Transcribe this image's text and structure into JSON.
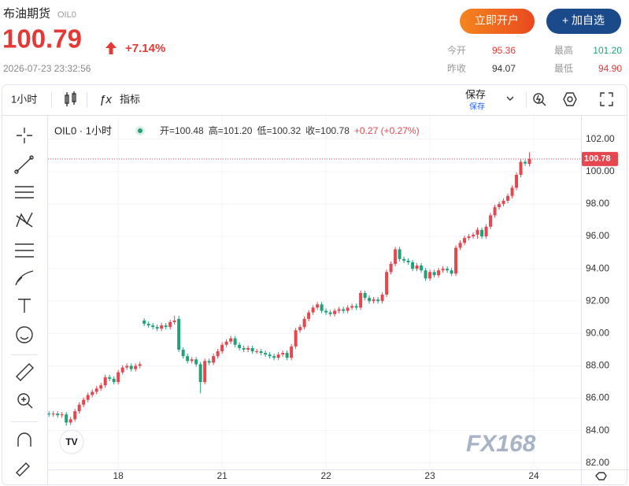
{
  "header": {
    "title": "布油期货",
    "code": "OIL0",
    "price": "100.79",
    "change": "+7.14%",
    "time": "2026-07-23 23:32:56",
    "buttons": [
      "立即开户",
      "+ 加自选"
    ],
    "stats": [
      {
        "label": "今开",
        "value": "95.36"
      },
      {
        "label": "最高",
        "value": "101.20"
      },
      {
        "label": "昨收",
        "value": "94.07"
      },
      {
        "label": "最低",
        "value": "94.90"
      }
    ]
  },
  "toolbar": {
    "interval": "1小时",
    "indicators": "指标",
    "save": "保存",
    "save_sub": "保存"
  },
  "chart_data": {
    "type": "candlestick",
    "title": "OIL0 · 1小时",
    "legend": [
      "开=100.48",
      "高=101.20",
      "低=100.32",
      "收=100.78",
      "+0.27 (+0.27%)"
    ],
    "up_color": "#e5474f",
    "down_color": "#22a07a",
    "grid": true,
    "xlim": [
      -0.4,
      122.9
    ],
    "xticks": [
      {
        "value": 16,
        "label": "18"
      },
      {
        "value": 40,
        "label": "21"
      },
      {
        "value": 64,
        "label": "22"
      },
      {
        "value": 88,
        "label": "23"
      },
      {
        "value": 112,
        "label": "24"
      }
    ],
    "ylim": [
      81.6,
      103.4
    ],
    "yticks": [
      {
        "value": 82,
        "label": "82.00"
      },
      {
        "value": 84,
        "label": "84.00"
      },
      {
        "value": 86,
        "label": "86.00"
      },
      {
        "value": 88,
        "label": "88.00"
      },
      {
        "value": 90,
        "label": "90.00"
      },
      {
        "value": 92,
        "label": "92.00"
      },
      {
        "value": 94,
        "label": "94.00"
      },
      {
        "value": 96,
        "label": "96.00"
      },
      {
        "value": 98,
        "label": "98.00"
      },
      {
        "value": 100,
        "label": "100.00"
      },
      {
        "value": 102,
        "label": "102.00"
      }
    ],
    "last_price": {
      "value": 100.78,
      "label": "100.78"
    },
    "open": [
      85.05,
      85.0,
      85.05,
      84.95,
      85.0,
      84.5,
      84.7,
      85.2,
      85.6,
      85.9,
      86.2,
      86.4,
      86.6,
      86.8,
      87.3,
      87.2,
      87.0,
      87.6,
      87.9,
      88.0,
      87.8,
      88.0,
      90.8,
      90.6,
      90.5,
      90.4,
      90.3,
      90.5,
      90.4,
      90.7,
      90.9,
      89.0,
      88.6,
      88.3,
      88.4,
      88.1,
      87.0,
      88.3,
      88.2,
      88.6,
      88.9,
      89.3,
      89.5,
      89.7,
      89.3,
      89.1,
      89.0,
      89.1,
      88.9,
      88.9,
      88.8,
      88.7,
      88.6,
      88.5,
      88.7,
      88.8,
      88.5,
      89.2,
      90.2,
      90.4,
      90.9,
      91.3,
      91.6,
      91.8,
      91.4,
      91.3,
      91.2,
      91.4,
      91.5,
      91.4,
      91.6,
      91.7,
      91.6,
      92.5,
      92.2,
      92.0,
      92.1,
      92.0,
      92.4,
      93.8,
      94.3,
      95.2,
      94.6,
      94.5,
      94.4,
      94.0,
      94.2,
      93.9,
      93.4,
      93.8,
      93.6,
      93.9,
      94.0,
      93.9,
      93.7,
      95.3,
      95.6,
      95.9,
      96.0,
      96.1,
      96.4,
      96.0,
      96.6,
      97.3,
      97.8,
      98.0,
      98.2,
      98.5,
      99.0,
      99.8,
      100.6,
      100.48
    ],
    "high": [
      85.2,
      85.2,
      85.2,
      85.15,
      85.15,
      84.85,
      85.35,
      85.75,
      86.05,
      86.35,
      86.55,
      86.75,
      86.95,
      87.45,
      87.45,
      87.35,
      87.75,
      88.05,
      88.15,
      88.15,
      88.15,
      88.25,
      90.95,
      90.75,
      90.65,
      90.55,
      90.65,
      90.65,
      90.85,
      91.1,
      91.1,
      89.15,
      88.75,
      88.55,
      88.55,
      88.25,
      88.45,
      88.45,
      88.75,
      89.05,
      89.45,
      89.65,
      89.85,
      89.85,
      89.45,
      89.25,
      89.25,
      89.25,
      89.05,
      89.05,
      88.95,
      88.85,
      88.75,
      88.85,
      88.95,
      88.95,
      89.35,
      90.35,
      90.55,
      91.05,
      91.45,
      91.75,
      91.95,
      91.95,
      91.55,
      91.45,
      91.55,
      91.65,
      91.65,
      91.75,
      91.85,
      91.85,
      92.65,
      92.65,
      92.35,
      92.25,
      92.25,
      92.55,
      93.95,
      94.45,
      95.35,
      95.35,
      94.75,
      94.65,
      94.55,
      94.35,
      94.35,
      94.05,
      93.95,
      93.95,
      94.05,
      94.15,
      94.15,
      94.05,
      95.45,
      95.75,
      96.05,
      96.15,
      96.25,
      96.55,
      96.55,
      96.75,
      97.45,
      97.95,
      98.15,
      98.35,
      98.65,
      99.15,
      99.95,
      100.75,
      100.75,
      101.2
    ],
    "low": [
      84.85,
      84.85,
      84.8,
      84.8,
      84.3,
      84.35,
      84.55,
      85.05,
      85.45,
      85.75,
      86.05,
      86.25,
      86.45,
      86.65,
      87.05,
      86.85,
      86.85,
      87.45,
      87.75,
      87.65,
      87.65,
      87.85,
      90.45,
      90.35,
      90.25,
      90.15,
      90.15,
      90.25,
      90.25,
      90.55,
      88.85,
      88.45,
      88.15,
      88.15,
      87.95,
      86.3,
      86.85,
      88.05,
      88.05,
      88.45,
      88.75,
      89.15,
      89.35,
      89.15,
      88.95,
      88.85,
      88.85,
      88.75,
      88.75,
      88.65,
      88.55,
      88.45,
      88.35,
      88.35,
      88.55,
      88.35,
      88.35,
      89.05,
      90.05,
      90.25,
      90.75,
      91.15,
      91.45,
      91.25,
      91.15,
      91.05,
      91.05,
      91.25,
      91.25,
      91.25,
      91.45,
      91.45,
      91.45,
      92.05,
      91.85,
      91.85,
      91.85,
      91.85,
      92.25,
      93.65,
      94.15,
      94.45,
      94.35,
      94.25,
      93.85,
      93.85,
      93.75,
      93.25,
      93.25,
      93.45,
      93.45,
      93.75,
      93.75,
      93.55,
      93.55,
      95.15,
      95.45,
      95.75,
      95.85,
      95.85,
      95.85,
      95.85,
      96.45,
      97.15,
      97.65,
      97.85,
      98.05,
      98.35,
      98.85,
      99.65,
      100.35,
      100.32
    ],
    "close": [
      85.0,
      85.05,
      84.95,
      85.0,
      84.5,
      84.7,
      85.2,
      85.6,
      85.9,
      86.2,
      86.4,
      86.6,
      86.8,
      87.3,
      87.2,
      87.0,
      87.6,
      87.9,
      88.0,
      87.8,
      88.0,
      88.1,
      90.6,
      90.5,
      90.4,
      90.3,
      90.5,
      90.4,
      90.7,
      90.8,
      89.0,
      88.6,
      88.3,
      88.4,
      88.1,
      87.0,
      88.3,
      88.2,
      88.6,
      88.9,
      89.3,
      89.5,
      89.7,
      89.3,
      89.1,
      89.0,
      89.1,
      88.9,
      88.9,
      88.8,
      88.7,
      88.6,
      88.5,
      88.7,
      88.8,
      88.5,
      89.2,
      90.2,
      90.4,
      90.9,
      91.3,
      91.6,
      91.8,
      91.4,
      91.3,
      91.2,
      91.4,
      91.5,
      91.4,
      91.6,
      91.7,
      91.6,
      92.5,
      92.2,
      92.0,
      92.1,
      92.0,
      92.4,
      93.8,
      94.3,
      95.2,
      94.6,
      94.5,
      94.4,
      94.0,
      94.2,
      93.9,
      93.4,
      93.8,
      93.6,
      93.9,
      94.0,
      93.9,
      93.7,
      95.3,
      95.6,
      95.9,
      96.0,
      96.1,
      96.4,
      96.0,
      96.6,
      97.3,
      97.8,
      98.0,
      98.2,
      98.5,
      99.0,
      99.8,
      100.6,
      100.5,
      100.78
    ]
  },
  "watermark": "FX168"
}
